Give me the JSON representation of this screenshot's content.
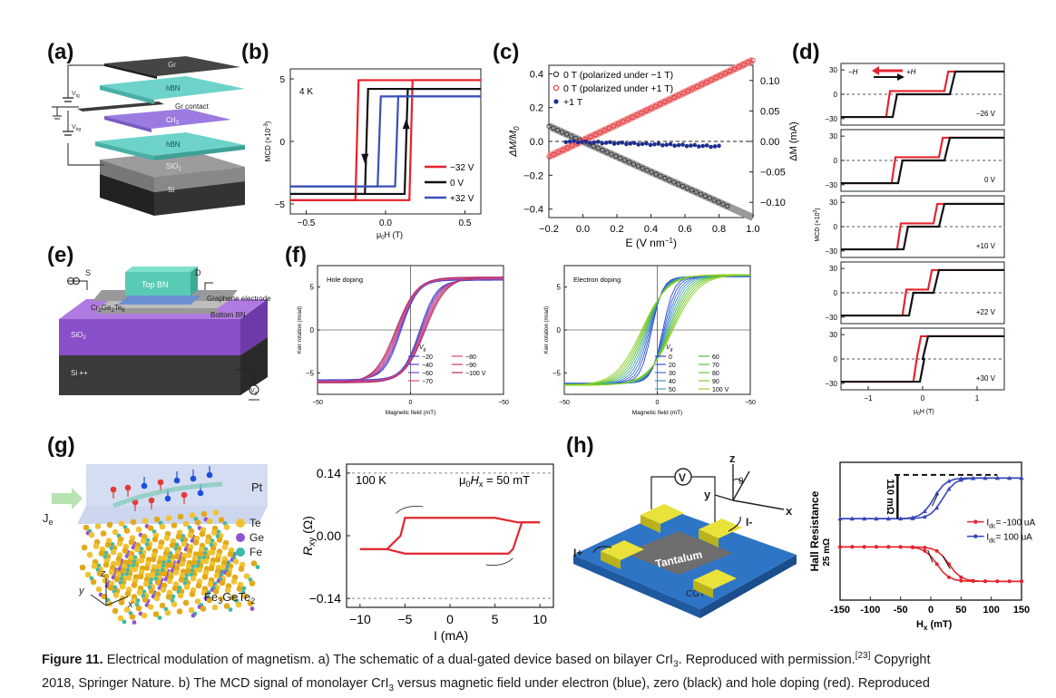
{
  "panels": {
    "a": {
      "label": "(a)",
      "layers": [
        "Gr",
        "hBN",
        "Gr contact",
        "CrI",
        "hBN",
        "SiO",
        "Si"
      ],
      "layer_subs": [
        "",
        "",
        "",
        "3",
        "",
        "2",
        ""
      ],
      "voltages": [
        "V",
        "V"
      ],
      "voltage_subs": [
        "tg",
        "bg"
      ]
    },
    "b": {
      "label": "(b)",
      "temp": "4 K",
      "ylabel": "MCD (×10",
      "ylabel_sup": "-3",
      "ylabel_end": ")",
      "xlabel_mu": "μ",
      "xlabel_sub": "0",
      "xlabel_rest": "H (T)",
      "yticks": [
        "5",
        "0",
        "−5"
      ],
      "xticks": [
        "−0.5",
        "0.0",
        "0.5"
      ],
      "legend": [
        "−32 V",
        "0 V",
        "+32 V"
      ],
      "colors": [
        "#e8202a",
        "#111111",
        "#3a4fb8"
      ]
    },
    "c": {
      "label": "(c)",
      "ylabel_left": "ΔM/M",
      "ylabel_left_sub": "0",
      "ylabel_right": "ΔM (mA)",
      "xlabel": "E (V nm",
      "xlabel_sup": "−1",
      "xlabel_end": ")",
      "yticks_left": [
        "0.4",
        "0.2",
        "0.0",
        "−0.2",
        "−0.4"
      ],
      "yticks_right": [
        "0.10",
        "0.05",
        "0.00",
        "−0.05",
        "−0.10"
      ],
      "xticks": [
        "−0.2",
        "0.0",
        "0.2",
        "0.4",
        "0.6",
        "0.8",
        "1.0"
      ],
      "legend": [
        "0 T (polarized under −1 T)",
        "0 T (polarized under +1 T)",
        "+1 T"
      ]
    },
    "d": {
      "label": "(d)",
      "arrows": [
        "−H",
        "+H"
      ],
      "voltages": [
        "−26 V",
        "0 V",
        "+10 V",
        "+22 V",
        "+30 V"
      ],
      "yticks": [
        "30",
        "0",
        "−30"
      ],
      "xticks": [
        "−1",
        "0",
        "1"
      ],
      "ylabel": "MCD (×10",
      "ylabel_sup": "3",
      "ylabel_end": ")",
      "xlabel": "μ",
      "xlabel_sub": "0",
      "xlabel_rest": "H (T)"
    },
    "e": {
      "label": "(e)",
      "labels": [
        "S",
        "D",
        "Top BN",
        "Graphene electrode",
        "Cr",
        "Ge",
        "Te",
        "Bottom BN",
        "SiO",
        "Si ++",
        "V"
      ],
      "subs": [
        "2",
        "2",
        "6",
        "2",
        "g"
      ]
    },
    "f": {
      "label": "(f)",
      "left_title": "Hole doping",
      "right_title": "Electron doping",
      "ylabel": "Kerr rotation (mrad)",
      "xlabel": "Magnetic field (mT)",
      "yticks": [
        "5",
        "0",
        "−5"
      ],
      "xticks": [
        "−50",
        "0",
        "−50"
      ],
      "vg": "V",
      "vg_sub": "g",
      "left_legend": [
        "−20",
        "−40",
        "−60",
        "−70",
        "−80",
        "−90",
        "−100 V"
      ],
      "right_legend": [
        "0",
        "20",
        "30",
        "40",
        "50",
        "60",
        "70",
        "80",
        "90",
        "100 V"
      ]
    },
    "g": {
      "label": "(g)",
      "pt": "Pt",
      "je": "J",
      "je_sub": "e",
      "elements": [
        "Te",
        "Ge",
        "Fe"
      ],
      "formula": "Fe",
      "formula_sub1": "3",
      "formula_mid": "GeTe",
      "formula_sub2": "2",
      "axes": [
        "z",
        "y",
        "x"
      ]
    },
    "g_plot": {
      "temp": "100 K",
      "field_mu": "μ",
      "field_sub": "0",
      "field_h": "H",
      "field_hsub": "x",
      "field_rest": " = 50 mT",
      "ylabel": "R",
      "ylabel_sub": "xy",
      "ylabel_unit": " (Ω)",
      "xlabel": "I (mA)",
      "yticks": [
        "0.14",
        "0.00",
        "−0.14"
      ],
      "xticks": [
        "−10",
        "−5",
        "0",
        "5",
        "10"
      ]
    },
    "h": {
      "label": "(h)",
      "labels": [
        "z",
        "y",
        "θ",
        "x",
        "V",
        "I-",
        "I+",
        "Tantalum",
        "CGT"
      ]
    },
    "h_plot": {
      "ylabel": "Hall Resistance",
      "scale_top": "110 mΩ",
      "scale_left": "25 mΩ",
      "legend": [
        "I",
        "I"
      ],
      "legend_subs": [
        "dc",
        "dc"
      ],
      "legend_vals": [
        "= -100 uA",
        "= 100 uA"
      ],
      "xlabel": "H",
      "xlabel_sub": "x",
      "xlabel_rest": " (mT)",
      "xticks": [
        "-150",
        "-100",
        "-50",
        "0",
        "50",
        "100",
        "150"
      ]
    }
  },
  "caption": {
    "line1_bold": "Figure 11.",
    "line1": " Electrical modulation of magnetism. a) The schematic of a dual-gated device based on bilayer CrI",
    "line1_sub": "3",
    "line1_end": ". Reproduced with permission.",
    "line1_ref": "[23]",
    "line1_tail": " Copyright",
    "line2": "2018, Springer Nature. b) The MCD signal of monolayer CrI",
    "line2_sub": "3",
    "line2_tail": " versus magnetic field under electron (blue), zero (black) and hole doping (red). Reproduced"
  },
  "chart_data": [
    {
      "type": "line",
      "panel": "b",
      "title": "",
      "xlabel": "μ0H (T)",
      "ylabel": "MCD (×10^-3)",
      "xlim": [
        -0.6,
        0.6
      ],
      "ylim": [
        -5.8,
        5.8
      ],
      "series": [
        {
          "name": "−32 V",
          "x": [
            -0.6,
            -0.19,
            -0.17,
            0.6
          ],
          "y": [
            -4.7,
            -4.7,
            4.9,
            4.9
          ],
          "return_x": [
            0.6,
            0.17,
            0.15,
            -0.6
          ],
          "return_y": [
            4.9,
            4.9,
            -4.7,
            -4.7
          ]
        },
        {
          "name": "0 V",
          "x": [
            -0.6,
            -0.13,
            -0.11,
            0.6
          ],
          "y": [
            -4.2,
            -4.2,
            4.2,
            4.2
          ],
          "return_x": [
            0.6,
            0.14,
            0.12,
            -0.6
          ],
          "return_y": [
            4.2,
            4.2,
            -4.2,
            -4.2
          ]
        },
        {
          "name": "+32 V",
          "x": [
            -0.6,
            -0.05,
            -0.03,
            0.6
          ],
          "y": [
            -3.6,
            -3.6,
            3.6,
            3.6
          ],
          "return_x": [
            0.6,
            0.08,
            0.06,
            -0.6
          ],
          "return_y": [
            3.6,
            3.6,
            -3.6,
            -3.6
          ]
        }
      ]
    },
    {
      "type": "scatter",
      "panel": "c",
      "title": "",
      "xlabel": "E (V nm^-1)",
      "ylabel": "ΔM/M0",
      "ylim": [
        -0.45,
        0.45
      ],
      "xlim": [
        -0.2,
        1.0
      ],
      "series": [
        {
          "name": "0 T (polarized under −1 T)",
          "x": [
            -0.2,
            0.0,
            0.2,
            0.4,
            0.6,
            0.85
          ],
          "y": [
            0.09,
            -0.01,
            -0.1,
            -0.2,
            -0.29,
            -0.37
          ]
        },
        {
          "name": "0 T (polarized under +1 T)",
          "x": [
            -0.2,
            0.0,
            0.2,
            0.4,
            0.6,
            1.0
          ],
          "y": [
            -0.09,
            0.01,
            0.1,
            0.2,
            0.3,
            0.47
          ]
        },
        {
          "name": "+1 T",
          "x": [
            -0.1,
            0.0,
            0.2,
            0.4,
            0.6,
            0.8
          ],
          "y": [
            0.0,
            0.0,
            -0.01,
            -0.015,
            -0.02,
            -0.025
          ]
        }
      ]
    },
    {
      "type": "line",
      "panel": "g_plot",
      "title": "",
      "xlabel": "I (mA)",
      "ylabel": "Rxy (Ω)",
      "xlim": [
        -11.5,
        11.5
      ],
      "ylim": [
        -0.16,
        0.16
      ],
      "series": [
        {
          "name": "",
          "x": [
            -10,
            -7,
            -5.5,
            -5,
            0,
            5,
            7.5,
            8,
            10
          ],
          "y": [
            -0.03,
            -0.03,
            0.0,
            0.04,
            0.04,
            0.04,
            0.03,
            0.03,
            0.03
          ],
          "return_x": [
            10,
            8,
            7,
            6.5,
            0,
            -5,
            -7,
            -8,
            -10
          ],
          "return_y": [
            0.03,
            0.03,
            -0.03,
            -0.04,
            -0.04,
            -0.04,
            -0.03,
            -0.03,
            -0.03
          ]
        }
      ]
    },
    {
      "type": "line",
      "panel": "h_plot",
      "title": "",
      "xlabel": "Hx (mT)",
      "ylabel": "Hall Resistance",
      "xlim": [
        -150,
        150
      ],
      "series": [
        {
          "name": "Idc = -100 uA",
          "x": [
            -150,
            -50,
            0,
            25,
            50,
            100,
            150
          ],
          "y": [
            -0.05,
            -0.05,
            -0.06,
            -0.1,
            -0.15,
            -0.16,
            -0.16
          ]
        },
        {
          "name": "Idc = 100 uA",
          "x": [
            -150,
            -50,
            0,
            25,
            50,
            100,
            150
          ],
          "y": [
            0.06,
            0.06,
            0.09,
            0.16,
            0.17,
            0.17,
            0.17
          ]
        }
      ]
    }
  ]
}
